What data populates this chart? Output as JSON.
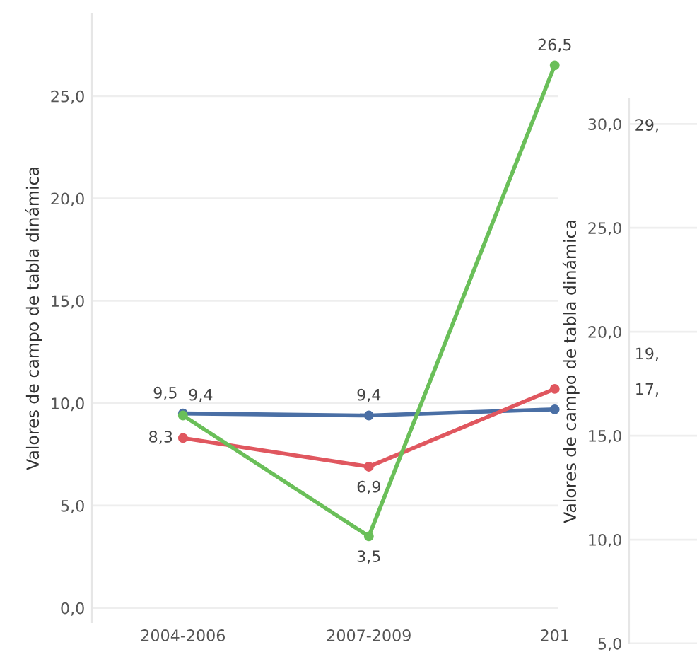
{
  "chart_data": [
    {
      "type": "line",
      "categories": [
        "2004-2006",
        "2007-2009",
        "201"
      ],
      "ylabel": "Valores de campo de tabla dinámica",
      "ylim": [
        -0.7,
        29
      ],
      "yticks": [
        {
          "value": 0,
          "label": "0,0"
        },
        {
          "value": 5,
          "label": "5,0"
        },
        {
          "value": 10,
          "label": "10,0"
        },
        {
          "value": 15,
          "label": "15,0"
        },
        {
          "value": 20,
          "label": "20,0"
        },
        {
          "value": 25,
          "label": "25,0"
        }
      ],
      "grid": "y",
      "marker": "circle",
      "line_style": "solid",
      "series": [
        {
          "color": "#4a6fa5",
          "values": [
            9.5,
            9.4,
            9.7
          ],
          "value_labels": [
            "9,5",
            "9,4",
            null
          ]
        },
        {
          "color": "#e0575f",
          "values": [
            8.3,
            6.9,
            10.7
          ],
          "value_labels": [
            "8,3",
            "6,9",
            null
          ]
        },
        {
          "color": "#6abf59",
          "values": [
            9.4,
            3.5,
            26.5
          ],
          "value_labels": [
            "9,4",
            "3,5",
            "26,5"
          ]
        }
      ]
    },
    {
      "type": "line",
      "categories": [
        null
      ],
      "ylabel": "Valores de campo de tabla dinámica",
      "ylim": [
        5,
        31.2
      ],
      "yticks": [
        {
          "value": 5,
          "label": "5,0"
        },
        {
          "value": 10,
          "label": "10,0"
        },
        {
          "value": 15,
          "label": "15,0"
        },
        {
          "value": 20,
          "label": "20,0"
        },
        {
          "value": 25,
          "label": "25,0"
        },
        {
          "value": 30,
          "label": "30,0"
        }
      ],
      "grid": "y",
      "tick_labels": "y",
      "annotations": [
        "29,",
        "19,",
        "17,"
      ]
    }
  ]
}
